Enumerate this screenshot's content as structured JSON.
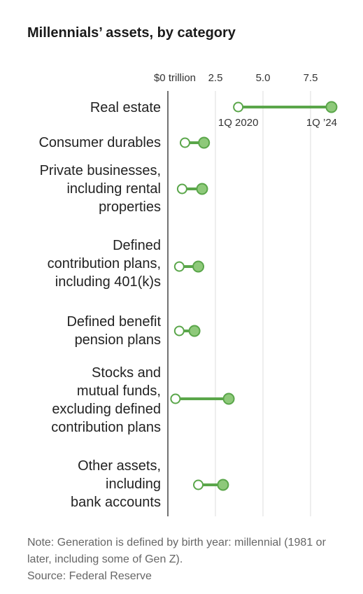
{
  "title": "Millennials’ assets, by category",
  "chart_data": {
    "type": "dumbbell",
    "title": "Millennials’ assets, by category",
    "unit": "trillion",
    "x_ticks": [
      {
        "value": 0,
        "label": "$0 trillion"
      },
      {
        "value": 2.5,
        "label": "2.5"
      },
      {
        "value": 5.0,
        "label": "5.0"
      },
      {
        "value": 7.5,
        "label": "7.5"
      }
    ],
    "xlim": [
      0,
      8.6
    ],
    "grid": true,
    "series_labels": {
      "start": "1Q 2020",
      "end": "1Q ’24"
    },
    "colors": {
      "line": "#5aa64a",
      "end_fill": "#8ec97a",
      "start_fill": "#ffffff",
      "grid": "#dddddd",
      "axis": "#444444"
    },
    "categories": [
      {
        "label": "Real estate",
        "start": 3.7,
        "end": 8.6
      },
      {
        "label": "Consumer durables",
        "start": 0.9,
        "end": 1.9
      },
      {
        "label": "Private businesses,\nincluding rental\nproperties",
        "start": 0.75,
        "end": 1.8
      },
      {
        "label": "Defined\ncontribution plans,\nincluding 401(k)s",
        "start": 0.6,
        "end": 1.6
      },
      {
        "label": "Defined benefit\npension plans",
        "start": 0.6,
        "end": 1.4
      },
      {
        "label": "Stocks and\nmutual funds,\nexcluding defined\ncontribution plans",
        "start": 0.4,
        "end": 3.2
      },
      {
        "label": "Other assets,\nincluding\nbank accounts",
        "start": 1.6,
        "end": 2.9
      }
    ]
  },
  "note": {
    "text": "Note: Generation is defined by birth year: millennial (1981 or later, including some of Gen Z).",
    "source": "Source: Federal Reserve"
  }
}
